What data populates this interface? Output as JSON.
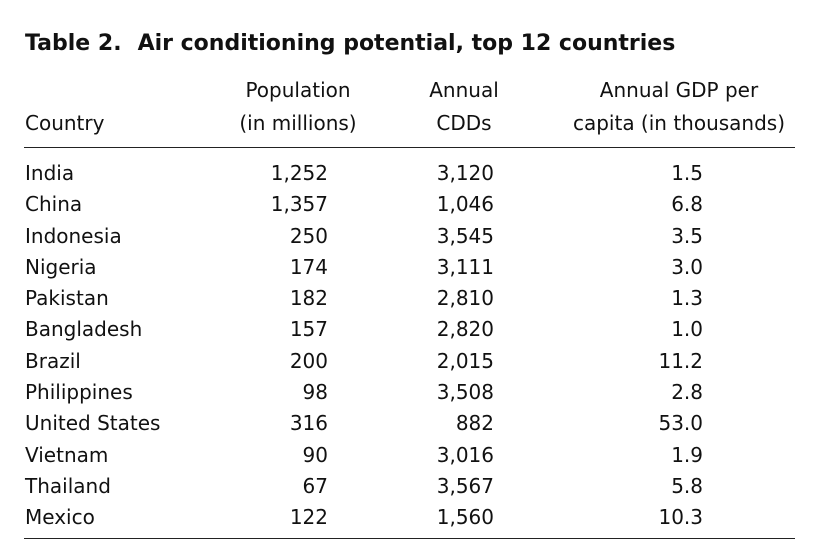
{
  "title": {
    "label": "Table 2.",
    "text": "Air conditioning potential, top 12 countries"
  },
  "headers": {
    "country": "Country",
    "population": [
      "Population",
      "(in millions)"
    ],
    "cdds": [
      "Annual",
      "CDDs"
    ],
    "gdp": [
      "Annual GDP per",
      "capita (in thousands)"
    ]
  },
  "rows": [
    {
      "country": "India",
      "population": "1,252",
      "cdds": "3,120",
      "gdp": "1.5"
    },
    {
      "country": "China",
      "population": "1,357",
      "cdds": "1,046",
      "gdp": "6.8"
    },
    {
      "country": "Indonesia",
      "population": "250",
      "cdds": "3,545",
      "gdp": "3.5"
    },
    {
      "country": "Nigeria",
      "population": "174",
      "cdds": "3,111",
      "gdp": "3.0"
    },
    {
      "country": "Pakistan",
      "population": "182",
      "cdds": "2,810",
      "gdp": "1.3"
    },
    {
      "country": "Bangladesh",
      "population": "157",
      "cdds": "2,820",
      "gdp": "1.0"
    },
    {
      "country": "Brazil",
      "population": "200",
      "cdds": "2,015",
      "gdp": "11.2"
    },
    {
      "country": "Philippines",
      "population": "98",
      "cdds": "3,508",
      "gdp": "2.8"
    },
    {
      "country": "United States",
      "population": "316",
      "cdds": "882",
      "gdp": "53.0"
    },
    {
      "country": "Vietnam",
      "population": "90",
      "cdds": "3,016",
      "gdp": "1.9"
    },
    {
      "country": "Thailand",
      "population": "67",
      "cdds": "3,567",
      "gdp": "5.8"
    },
    {
      "country": "Mexico",
      "population": "122",
      "cdds": "1,560",
      "gdp": "10.3"
    }
  ]
}
